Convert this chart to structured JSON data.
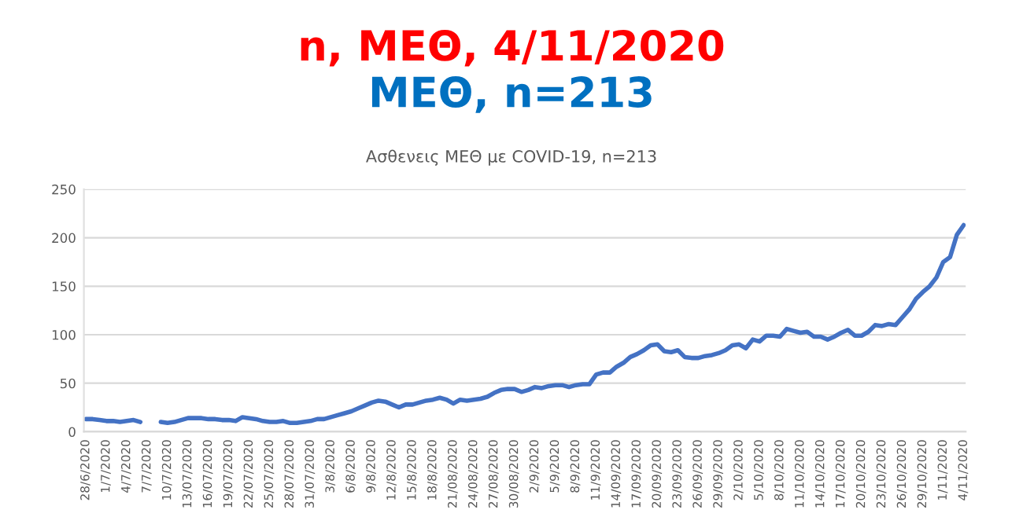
{
  "chart_data": {
    "type": "line",
    "title": "n, ΜΕΘ, 4/11/2020",
    "subtitle": "ΜΕΘ, n=213",
    "annotations": [
      "Ασθενεις ΜΕΘ με COVID-19, n=213"
    ],
    "categories": [
      "28/6/2020",
      null,
      null,
      "1/7/2020",
      null,
      null,
      "4/7/2020",
      null,
      null,
      "7/7/2020",
      null,
      null,
      "10/7/2020",
      null,
      null,
      "13/07/2020",
      null,
      null,
      "16/07/2020",
      null,
      null,
      "19/07/2020",
      null,
      null,
      "22/07/2020",
      null,
      null,
      "25/07/2020",
      null,
      null,
      "28/07/2020",
      null,
      null,
      "31/07/2020",
      null,
      null,
      "3/8/2020",
      null,
      null,
      "6/8/2020",
      null,
      null,
      "9/8/2020",
      null,
      null,
      "12/8/2020",
      null,
      null,
      "15/8/2020",
      null,
      null,
      "18/8/2020",
      null,
      null,
      "21/08/2020",
      null,
      null,
      "24/08/2020",
      null,
      null,
      "27/08/2020",
      null,
      null,
      "30/08/2020",
      null,
      null,
      "2/9/2020",
      null,
      null,
      "5/9/2020",
      null,
      null,
      "8/9/2020",
      null,
      null,
      "11/9/2020",
      null,
      null,
      "14/09/2020",
      null,
      null,
      "17/09/2020",
      null,
      null,
      "20/09/2020",
      null,
      null,
      "23/09/2020",
      null,
      null,
      "26/09/2020",
      null,
      null,
      "29/09/2020",
      null,
      null,
      "2/10/2020",
      null,
      null,
      "5/10/2020",
      null,
      null,
      "8/10/2020",
      null,
      null,
      "11/10/2020",
      null,
      null,
      "14/10/2020",
      null,
      null,
      "17/10/2020",
      null,
      null,
      "20/10/2020",
      null,
      null,
      "23/10/2020",
      null,
      null,
      "26/10/2020",
      null,
      null,
      "29/10/2020",
      null,
      null,
      "1/11/2020",
      null,
      null,
      "4/11/2020"
    ],
    "series": [
      {
        "color": "#4472c4",
        "values": [
          13,
          13,
          12,
          11,
          11,
          10,
          11,
          12,
          10,
          null,
          null,
          10,
          9,
          10,
          12,
          14,
          14,
          14,
          13,
          13,
          12,
          12,
          11,
          15,
          14,
          13,
          11,
          10,
          10,
          11,
          9,
          9,
          10,
          11,
          13,
          13,
          15,
          17,
          19,
          21,
          24,
          27,
          30,
          32,
          31,
          28,
          25,
          28,
          28,
          30,
          32,
          33,
          35,
          33,
          29,
          33,
          32,
          33,
          34,
          36,
          40,
          43,
          44,
          44,
          41,
          43,
          46,
          45,
          47,
          48,
          48,
          46,
          48,
          49,
          49,
          59,
          61,
          61,
          67,
          71,
          77,
          80,
          84,
          89,
          90,
          83,
          82,
          84,
          77,
          76,
          76,
          78,
          79,
          81,
          84,
          89,
          90,
          86,
          95,
          93,
          99,
          99,
          98,
          106,
          104,
          102,
          103,
          98,
          98,
          95,
          98,
          102,
          105,
          99,
          99,
          103,
          110,
          109,
          111,
          110,
          118,
          126,
          137,
          144,
          150,
          159,
          175,
          180,
          203,
          213
        ]
      }
    ],
    "ylim": [
      0,
      250
    ],
    "yticks": [
      0,
      50,
      100,
      150,
      200,
      250
    ],
    "grid": "y",
    "marker": "none",
    "line_style": "solid"
  }
}
